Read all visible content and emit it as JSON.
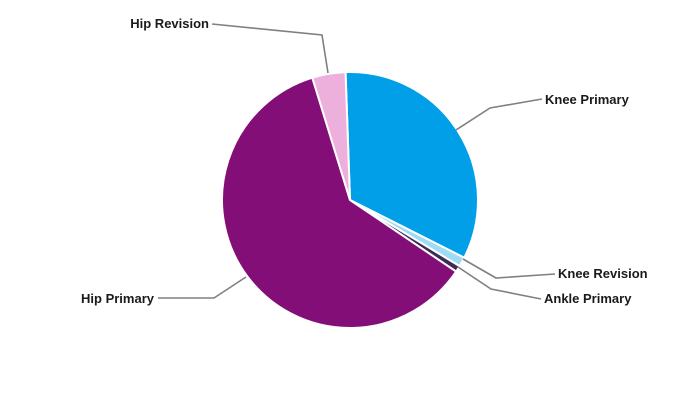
{
  "chart_data": {
    "type": "pie",
    "title": "",
    "legend": "none",
    "start_angle_deg": -2,
    "slices": [
      {
        "label": "Knee Primary",
        "value": 33.0,
        "color": "#009FE8"
      },
      {
        "label": "Knee Revision",
        "value": 1.2,
        "color": "#9EDCF6"
      },
      {
        "label": "Ankle Primary",
        "value": 0.8,
        "color": "#3E2B55"
      },
      {
        "label": "Hip Primary",
        "value": 60.8,
        "color": "#840E78"
      },
      {
        "label": "Hip Revision",
        "value": 4.2,
        "color": "#EDB0DC"
      }
    ]
  }
}
